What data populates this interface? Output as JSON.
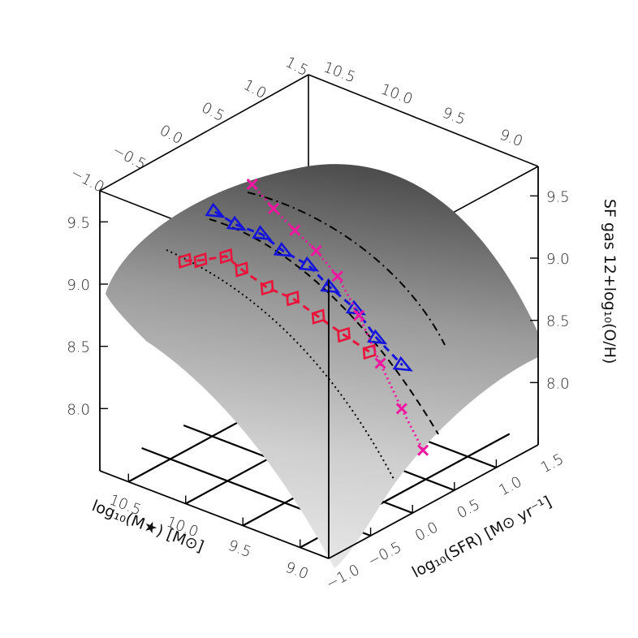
{
  "chart_data": {
    "type": "3d-surface",
    "title": "",
    "axes": {
      "x": {
        "label": "log₁₀(M★) [M⊙]",
        "range": [
          8.75,
          10.75
        ],
        "ticks": [
          10.5,
          10.0,
          9.5,
          9.0
        ],
        "tick_labels": [
          "10.5",
          "10.0",
          "9.5",
          "9.0"
        ]
      },
      "y": {
        "label": "log₁₀(SFR) [M⊙ yr⁻¹]",
        "range": [
          -1.0,
          1.5
        ],
        "ticks": [
          -1.0,
          -0.5,
          0.0,
          0.5,
          1.0,
          1.5
        ],
        "tick_labels": [
          "−1.0",
          "−0.5",
          "0.0",
          "0.5",
          "1.0",
          "1.5"
        ]
      },
      "z": {
        "label": "SF gas 12+log₁₀(O/H)",
        "range": [
          7.5,
          9.75
        ],
        "ticks": [
          8.0,
          8.5,
          9.0,
          9.5
        ],
        "tick_labels": [
          "8.0",
          "8.5",
          "9.0",
          "9.5"
        ]
      }
    },
    "surface": {
      "description_free": true,
      "color_low": "#f2f2f2",
      "color_high": "#555555"
    },
    "series": [
      {
        "marker": "square",
        "color": "#e8143c",
        "linestyle": "dashed",
        "points": [
          {
            "x": 10.3,
            "y": -0.6,
            "z": 9.2
          },
          {
            "x": 10.2,
            "y": -0.55,
            "z": 9.22
          },
          {
            "x": 10.05,
            "y": -0.45,
            "z": 9.27
          },
          {
            "x": 9.95,
            "y": -0.4,
            "z": 9.18
          },
          {
            "x": 9.8,
            "y": -0.3,
            "z": 9.05
          },
          {
            "x": 9.65,
            "y": -0.2,
            "z": 8.98
          },
          {
            "x": 9.5,
            "y": -0.1,
            "z": 8.85
          },
          {
            "x": 9.35,
            "y": 0.0,
            "z": 8.72
          },
          {
            "x": 9.2,
            "y": 0.1,
            "z": 8.6
          }
        ]
      },
      {
        "marker": "triangle",
        "color": "#1414dc",
        "linestyle": "dashed",
        "points": [
          {
            "x": 10.55,
            "y": 0.1,
            "z": 9.25
          },
          {
            "x": 10.4,
            "y": 0.15,
            "z": 9.18
          },
          {
            "x": 10.25,
            "y": 0.25,
            "z": 9.12
          },
          {
            "x": 10.1,
            "y": 0.3,
            "z": 9.02
          },
          {
            "x": 9.95,
            "y": 0.4,
            "z": 8.92
          },
          {
            "x": 9.8,
            "y": 0.45,
            "z": 8.78
          },
          {
            "x": 9.65,
            "y": 0.55,
            "z": 8.62
          },
          {
            "x": 9.5,
            "y": 0.6,
            "z": 8.42
          },
          {
            "x": 9.35,
            "y": 0.7,
            "z": 8.22
          }
        ]
      },
      {
        "marker": "x",
        "color": "#ee18a0",
        "linestyle": "dotted",
        "points": [
          {
            "x": 10.7,
            "y": 0.75,
            "z": 9.18
          },
          {
            "x": 10.55,
            "y": 0.8,
            "z": 9.02
          },
          {
            "x": 10.4,
            "y": 0.85,
            "z": 8.88
          },
          {
            "x": 10.25,
            "y": 0.9,
            "z": 8.75
          },
          {
            "x": 10.1,
            "y": 0.95,
            "z": 8.58
          },
          {
            "x": 9.95,
            "y": 1.0,
            "z": 8.3
          },
          {
            "x": 9.8,
            "y": 1.05,
            "z": 7.95
          },
          {
            "x": 9.65,
            "y": 1.1,
            "z": 7.62
          },
          {
            "x": 9.5,
            "y": 1.15,
            "z": 7.32
          }
        ]
      }
    ]
  }
}
